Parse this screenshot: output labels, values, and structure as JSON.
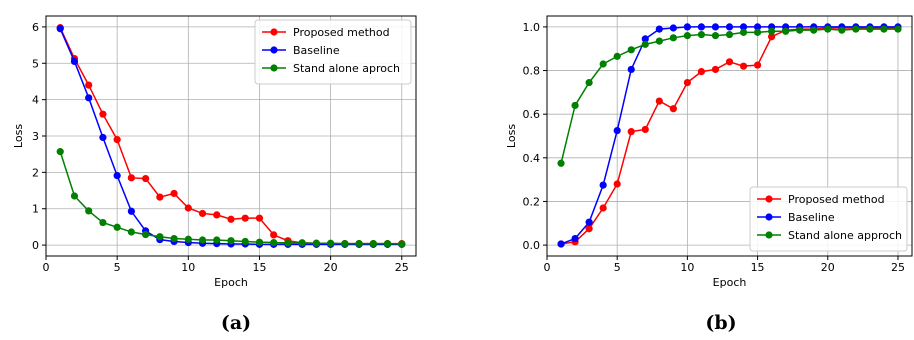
{
  "chart_data": [
    {
      "type": "line",
      "xlabel": "Epoch",
      "ylabel": "Loss",
      "xlim": [
        0,
        26
      ],
      "ylim": [
        -0.3,
        6.3
      ],
      "xticks": [
        0,
        5,
        10,
        15,
        20,
        25
      ],
      "yticks": [
        0,
        1,
        2,
        3,
        4,
        5,
        6
      ],
      "grid": true,
      "legend_position": "top-right",
      "caption": "(a)",
      "x": [
        1,
        2,
        3,
        4,
        5,
        6,
        7,
        8,
        9,
        10,
        11,
        12,
        13,
        14,
        15,
        16,
        17,
        18,
        19,
        20,
        21,
        22,
        23,
        24,
        25
      ],
      "series": [
        {
          "name": "Proposed method",
          "color": "#ff0000",
          "values": [
            5.98,
            5.13,
            4.4,
            3.6,
            2.9,
            1.85,
            1.83,
            1.32,
            1.42,
            1.02,
            0.87,
            0.83,
            0.71,
            0.74,
            0.74,
            0.28,
            0.12,
            0.06,
            0.05,
            0.04,
            0.04,
            0.04,
            0.04,
            0.04,
            0.04
          ]
        },
        {
          "name": "Baseline",
          "color": "#0000ff",
          "values": [
            5.95,
            5.05,
            4.05,
            2.96,
            1.91,
            0.93,
            0.39,
            0.15,
            0.1,
            0.07,
            0.05,
            0.04,
            0.03,
            0.03,
            0.02,
            0.02,
            0.02,
            0.02,
            0.02,
            0.02,
            0.02,
            0.02,
            0.02,
            0.02,
            0.02
          ]
        },
        {
          "name": "Stand alone aproch",
          "color": "#008000",
          "values": [
            2.57,
            1.35,
            0.94,
            0.62,
            0.49,
            0.36,
            0.29,
            0.23,
            0.18,
            0.16,
            0.14,
            0.14,
            0.12,
            0.1,
            0.08,
            0.07,
            0.06,
            0.06,
            0.05,
            0.05,
            0.04,
            0.04,
            0.04,
            0.04,
            0.03
          ]
        }
      ]
    },
    {
      "type": "line",
      "xlabel": "Epoch",
      "ylabel": "Loss",
      "xlim": [
        0,
        26
      ],
      "ylim": [
        -0.05,
        1.05
      ],
      "xticks": [
        0,
        5,
        10,
        15,
        20,
        25
      ],
      "yticks": [
        0.0,
        0.2,
        0.4,
        0.6,
        0.8,
        1.0
      ],
      "ytick_labels": [
        "0.0",
        "0.2",
        "0.4",
        "0.6",
        "0.8",
        "1.0"
      ],
      "grid": true,
      "legend_position": "bottom-right",
      "caption": "(b)",
      "x": [
        1,
        2,
        3,
        4,
        5,
        6,
        7,
        8,
        9,
        10,
        11,
        12,
        13,
        14,
        15,
        16,
        17,
        18,
        19,
        20,
        21,
        22,
        23,
        24,
        25
      ],
      "series": [
        {
          "name": "Proposed method",
          "color": "#ff0000",
          "values": [
            0.005,
            0.015,
            0.075,
            0.17,
            0.28,
            0.52,
            0.53,
            0.66,
            0.625,
            0.745,
            0.795,
            0.805,
            0.84,
            0.82,
            0.825,
            0.955,
            0.985,
            0.99,
            0.99,
            0.995,
            0.995,
            0.995,
            0.995,
            0.995,
            0.995
          ]
        },
        {
          "name": "Baseline",
          "color": "#0000ff",
          "values": [
            0.005,
            0.03,
            0.105,
            0.275,
            0.525,
            0.805,
            0.945,
            0.99,
            0.995,
            1.0,
            1.0,
            1.0,
            1.0,
            1.0,
            1.0,
            1.0,
            1.0,
            1.0,
            1.0,
            1.0,
            1.0,
            1.0,
            1.0,
            1.0,
            1.0
          ]
        },
        {
          "name": "Stand alone approch",
          "color": "#008000",
          "values": [
            0.375,
            0.64,
            0.745,
            0.83,
            0.865,
            0.895,
            0.92,
            0.935,
            0.95,
            0.96,
            0.965,
            0.96,
            0.965,
            0.975,
            0.975,
            0.98,
            0.98,
            0.985,
            0.985,
            0.99,
            0.985,
            0.99,
            0.99,
            0.99,
            0.99
          ]
        }
      ]
    }
  ]
}
